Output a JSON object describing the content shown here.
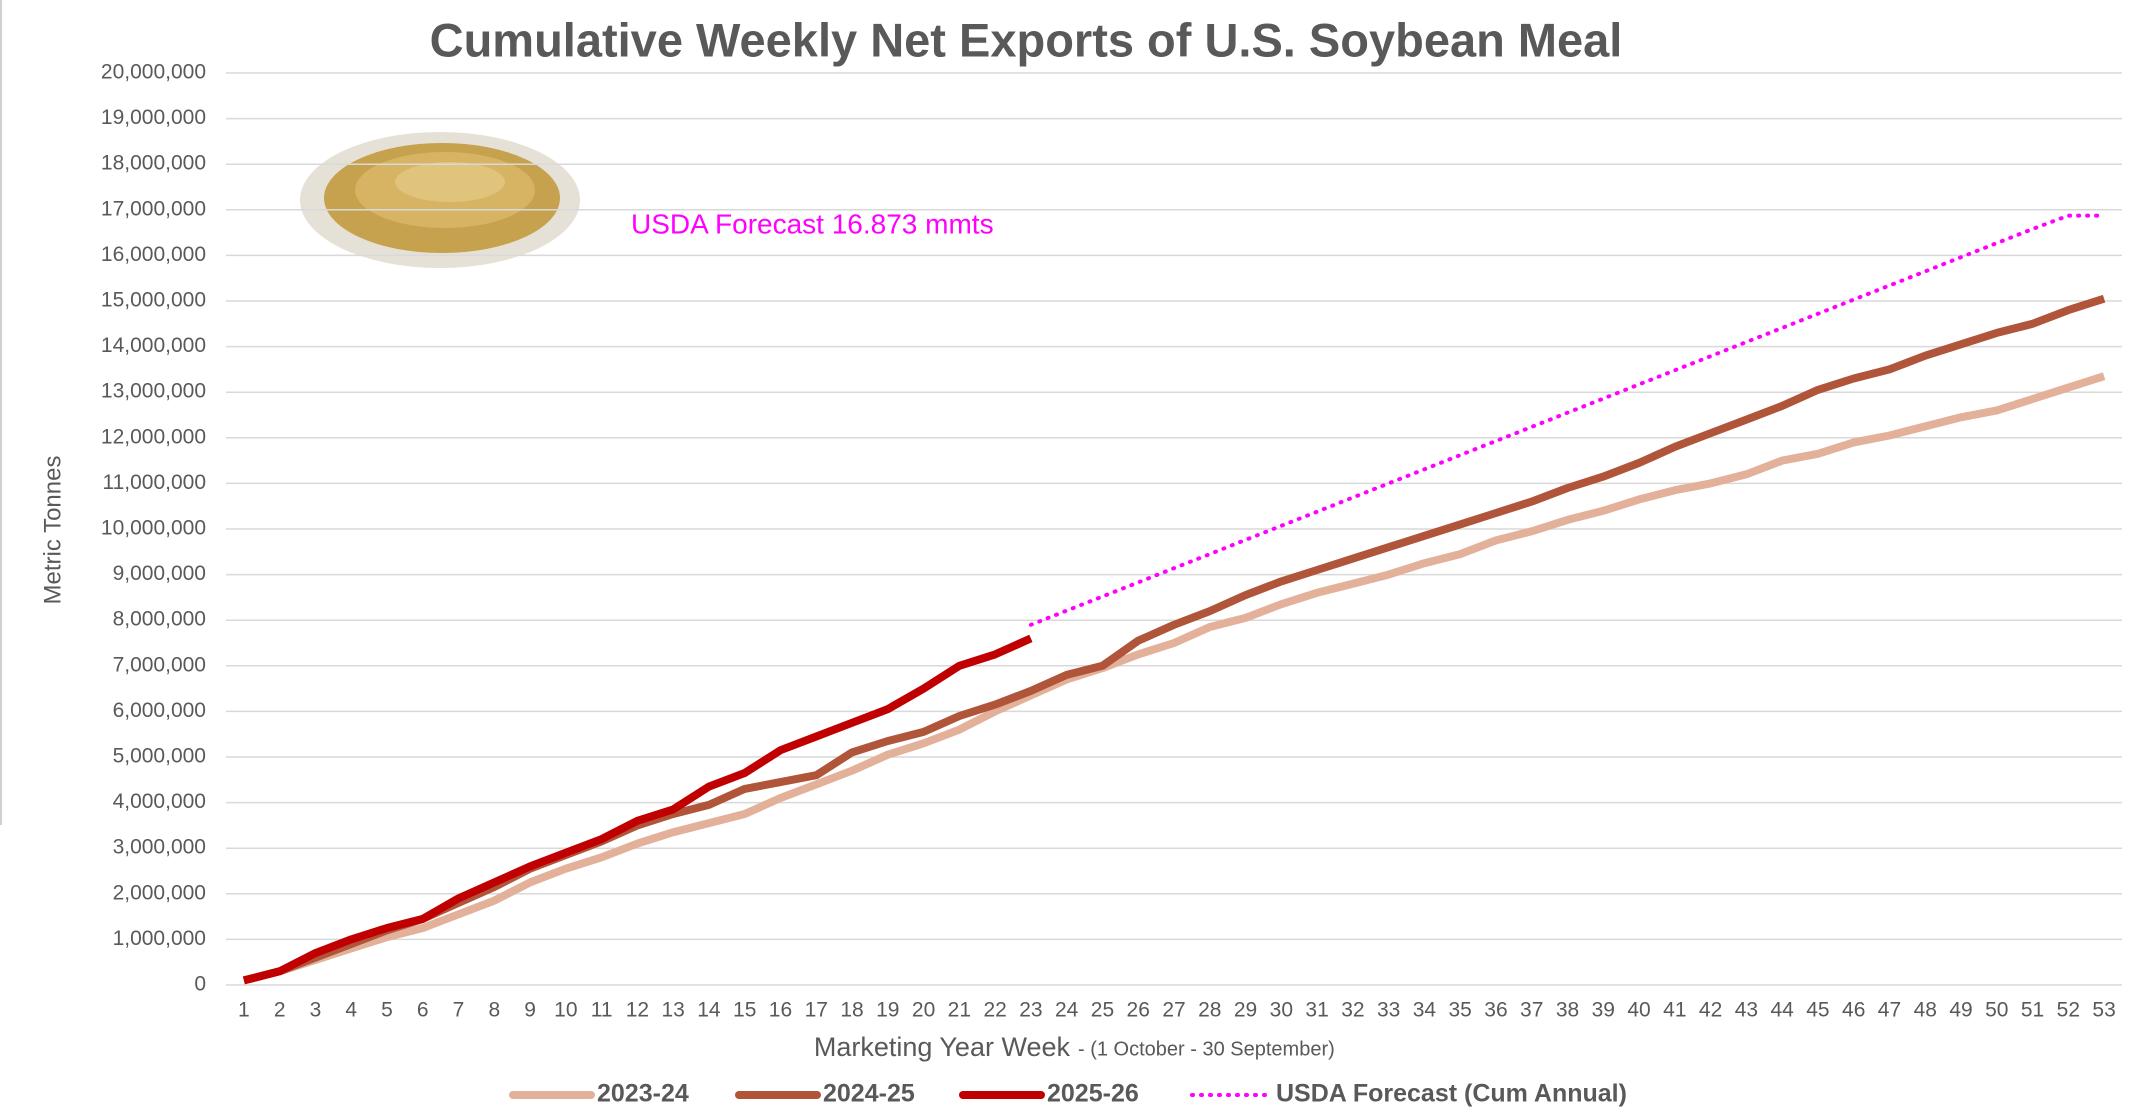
{
  "chart_data": {
    "type": "line",
    "title": "Cumulative Weekly Net Exports of U.S. Soybean Meal",
    "ylabel": "Metric Tonnes",
    "xlabel": "Marketing Year Week",
    "xlabel_note": "- (1 October - 30 September)",
    "annotation": "USDA Forecast 16.873 mmts",
    "grid": true,
    "legend": "bottom",
    "categories": [
      "1",
      "2",
      "3",
      "4",
      "5",
      "6",
      "7",
      "8",
      "9",
      "10",
      "11",
      "12",
      "13",
      "14",
      "15",
      "16",
      "17",
      "18",
      "19",
      "20",
      "21",
      "22",
      "23",
      "24",
      "25",
      "26",
      "27",
      "28",
      "29",
      "30",
      "31",
      "32",
      "33",
      "34",
      "35",
      "36",
      "37",
      "38",
      "39",
      "40",
      "41",
      "42",
      "43",
      "44",
      "45",
      "46",
      "47",
      "48",
      "49",
      "50",
      "51",
      "52",
      "53"
    ],
    "ylim": [
      0,
      20000000
    ],
    "yticks": [
      0,
      {
        "value": 1000000,
        "label": "1,000,000"
      },
      {
        "value": 2000000,
        "label": "2,000,000"
      },
      {
        "value": 3000000,
        "label": "3,000,000"
      },
      {
        "value": 4000000,
        "label": "4,000,000"
      },
      {
        "value": 5000000,
        "label": "5,000,000"
      },
      {
        "value": 6000000,
        "label": "6,000,000"
      },
      {
        "value": 7000000,
        "label": "7,000,000"
      },
      {
        "value": 8000000,
        "label": "8,000,000"
      },
      {
        "value": 9000000,
        "label": "9,000,000"
      },
      {
        "value": 10000000,
        "label": "10,000,000"
      },
      {
        "value": 11000000,
        "label": "11,000,000"
      },
      {
        "value": 12000000,
        "label": "12,000,000"
      },
      {
        "value": 13000000,
        "label": "13,000,000"
      },
      {
        "value": 14000000,
        "label": "14,000,000"
      },
      {
        "value": 15000000,
        "label": "15,000,000"
      },
      {
        "value": 16000000,
        "label": "16,000,000"
      },
      {
        "value": 17000000,
        "label": "17,000,000"
      },
      {
        "value": 18000000,
        "label": "18,000,000"
      },
      {
        "value": 19000000,
        "label": "19,000,000"
      },
      {
        "value": 20000000,
        "label": "20,000,000"
      }
    ],
    "series": [
      {
        "name": "2023-24",
        "color": "#e3b09a",
        "style": "solid",
        "values": [
          100000,
          300000,
          550000,
          800000,
          1050000,
          1250000,
          1550000,
          1850000,
          2250000,
          2550000,
          2800000,
          3100000,
          3350000,
          3550000,
          3750000,
          4100000,
          4400000,
          4700000,
          5050000,
          5300000,
          5600000,
          6000000,
          6350000,
          6700000,
          6950000,
          7250000,
          7500000,
          7850000,
          8050000,
          8350000,
          8600000,
          8800000,
          9000000,
          9250000,
          9450000,
          9750000,
          9950000,
          10200000,
          10400000,
          10650000,
          10850000,
          11000000,
          11200000,
          11500000,
          11650000,
          11900000,
          12050000,
          12250000,
          12450000,
          12600000,
          12850000,
          13100000,
          13350000
        ]
      },
      {
        "name": "2024-25",
        "color": "#b0553a",
        "style": "solid",
        "values": [
          100000,
          300000,
          600000,
          900000,
          1200000,
          1450000,
          1800000,
          2150000,
          2550000,
          2850000,
          3150000,
          3500000,
          3750000,
          3950000,
          4300000,
          4450000,
          4600000,
          5100000,
          5350000,
          5550000,
          5900000,
          6150000,
          6450000,
          6800000,
          7000000,
          7550000,
          7900000,
          8200000,
          8550000,
          8850000,
          9100000,
          9350000,
          9600000,
          9850000,
          10100000,
          10350000,
          10600000,
          10900000,
          11150000,
          11450000,
          11800000,
          12100000,
          12400000,
          12700000,
          13050000,
          13300000,
          13500000,
          13800000,
          14050000,
          14300000,
          14500000,
          14800000,
          15050000
        ]
      },
      {
        "name": "2025-26",
        "color": "#c00000",
        "style": "solid",
        "values": [
          100000,
          300000,
          700000,
          1000000,
          1250000,
          1450000,
          1900000,
          2250000,
          2600000,
          2900000,
          3200000,
          3600000,
          3850000,
          4350000,
          4650000,
          5150000,
          5450000,
          5750000,
          6050000,
          6500000,
          7000000,
          7250000,
          7600000,
          null,
          null,
          null,
          null,
          null,
          null,
          null,
          null,
          null,
          null,
          null,
          null,
          null,
          null,
          null,
          null,
          null,
          null,
          null,
          null,
          null,
          null,
          null,
          null,
          null,
          null,
          null,
          null,
          null,
          null
        ]
      },
      {
        "name": "USDA Forecast (Cum Annual)",
        "color": "#ff00ff",
        "style": "dotted",
        "values": [
          null,
          null,
          null,
          null,
          null,
          null,
          null,
          null,
          null,
          null,
          null,
          null,
          null,
          null,
          null,
          null,
          null,
          null,
          null,
          null,
          null,
          null,
          7900000,
          8210000,
          8520000,
          8830000,
          9140000,
          9450000,
          9760000,
          10070000,
          10380000,
          10690000,
          11000000,
          11310000,
          11620000,
          11930000,
          12240000,
          12550000,
          12860000,
          13170000,
          13480000,
          13790000,
          14100000,
          14410000,
          14720000,
          15030000,
          15340000,
          15650000,
          15960000,
          16270000,
          16580000,
          16873000,
          16873000
        ]
      }
    ]
  }
}
